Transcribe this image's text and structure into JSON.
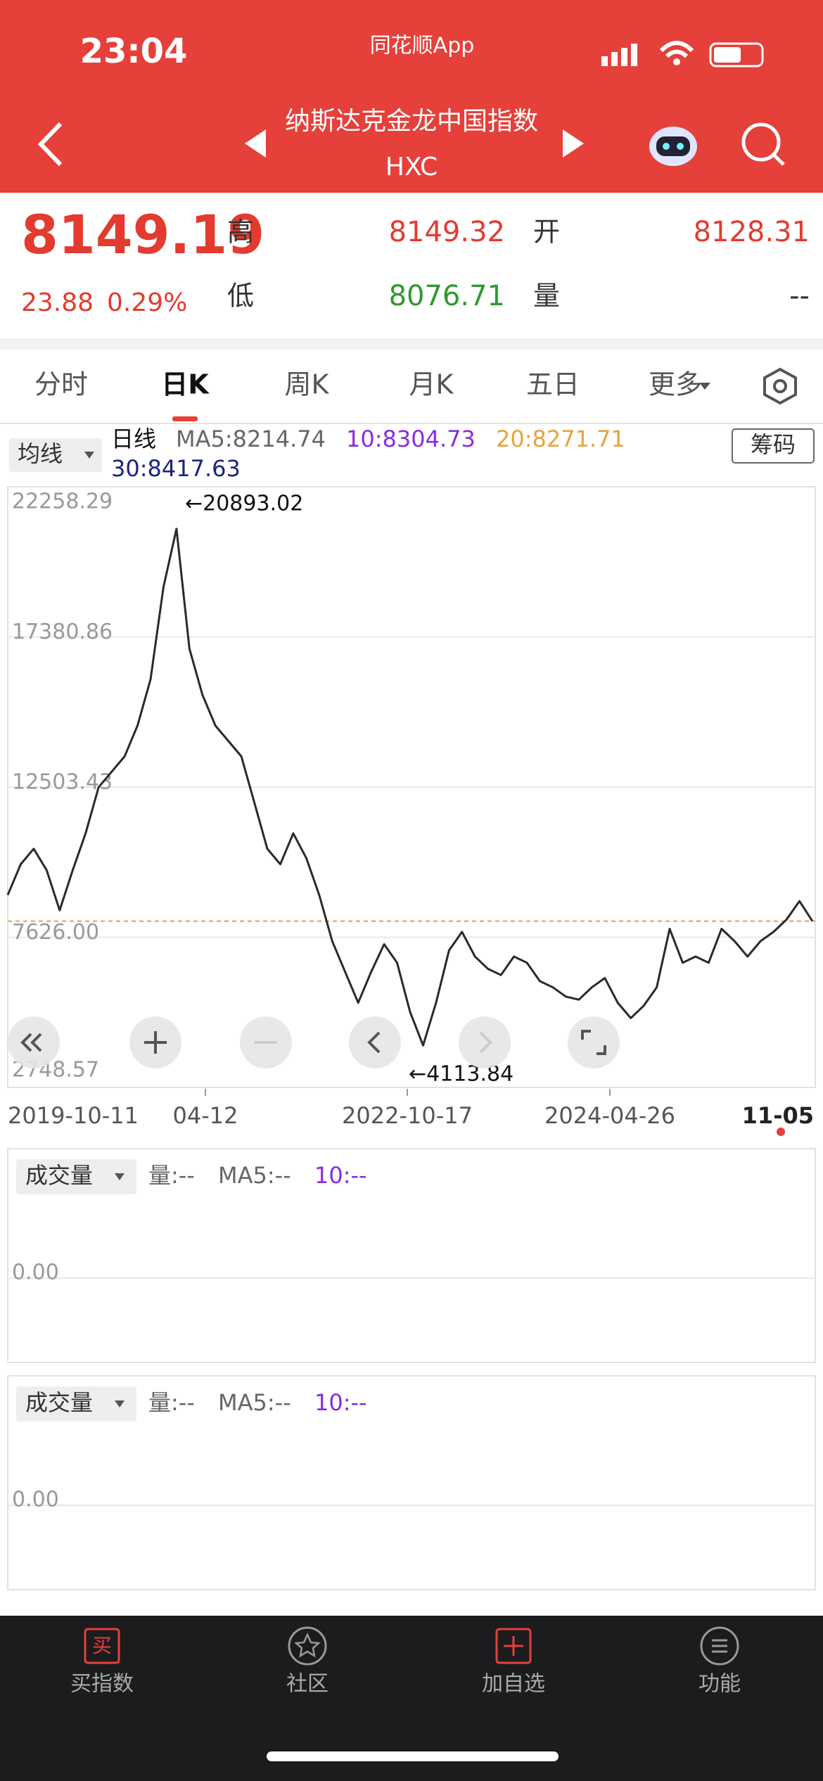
{
  "status": {
    "time": "23:04",
    "app": "同花顺App"
  },
  "header": {
    "title": "纳斯达克金龙中国指数",
    "code": "HXC"
  },
  "quote": {
    "price": 8149.19,
    "change": 23.88,
    "change_pct": "0.29%",
    "high_label": "高",
    "high": 8149.32,
    "open_label": "开",
    "open": 8128.31,
    "low_label": "低",
    "low": 8076.71,
    "volume_label": "量",
    "volume": "--"
  },
  "tabs": {
    "items": [
      "分时",
      "日K",
      "周K",
      "月K",
      "五日",
      "更多"
    ],
    "active": 1
  },
  "legend": {
    "ma_button": "均线",
    "period": "日线",
    "ma5": "MA5:8214.74",
    "ma10": "10:8304.73",
    "ma20": "20:8271.71",
    "ma30": "30:8417.63",
    "chips": "筹码"
  },
  "chart_data": {
    "type": "line",
    "ylim": [
      2748.57,
      22258.29
    ],
    "yticks": [
      22258.29,
      17380.86,
      12503.43,
      {
        "value": 7626,
        "label": "7626.00"
      },
      2748.57
    ],
    "x_labels": [
      "2019-10-11",
      "04-12",
      "2022-10-17",
      "2024-04-26",
      "11-05"
    ],
    "annotations": [
      "←20893.02",
      "←4113.84"
    ],
    "color": "#2a2a2a",
    "values": [
      9000,
      10000,
      10500,
      9800,
      8500,
      9800,
      11000,
      12500,
      13000,
      13500,
      14500,
      16000,
      19000,
      20893.02,
      17000,
      15500,
      14500,
      14000,
      13500,
      12000,
      10500,
      10000,
      11000,
      10200,
      9000,
      7500,
      6500,
      5500,
      6500,
      7400,
      6800,
      5200,
      4113.84,
      5500,
      7200,
      7800,
      7000,
      6600,
      6400,
      7000,
      6800,
      6200,
      6000,
      5700,
      5600,
      6000,
      6300,
      5500,
      5000,
      5400,
      6000,
      7900,
      6800,
      7000,
      6800,
      7900,
      7500,
      7000,
      7500,
      7800,
      8200,
      8800,
      8149.19
    ]
  },
  "volume_panels": [
    {
      "label": "成交量",
      "vol": "量:--",
      "ma5": "MA5:--",
      "ma10": "10:--",
      "zero": "0.00"
    },
    {
      "label": "成交量",
      "vol": "量:--",
      "ma5": "MA5:--",
      "ma10": "10:--",
      "zero": "0.00"
    }
  ],
  "nav": [
    "买指数",
    "社区",
    "加自选",
    "功能"
  ]
}
